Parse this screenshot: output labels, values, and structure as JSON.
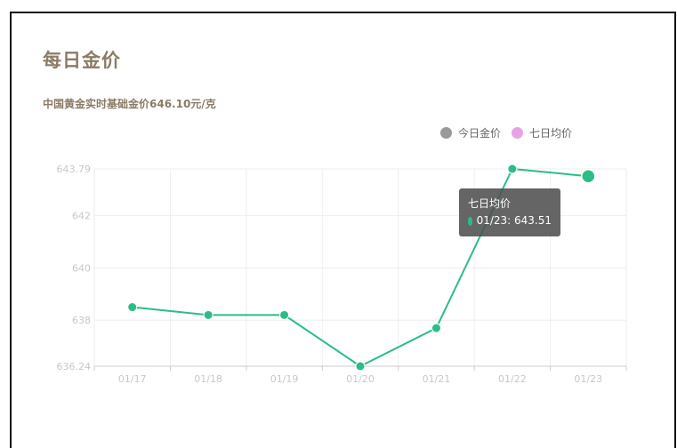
{
  "page": {
    "title": "每日金价",
    "subtitle": "中国黄金实时基础金价646.10元/克"
  },
  "colors": {
    "title": "#8b7b66",
    "line": "#2bbd86",
    "legend_today": "#999999",
    "legend_week": "#e8a2e3",
    "axis_text": "#c8c8c8",
    "grid": "#eeeeee",
    "tooltip_bg": "#505050"
  },
  "chart_data": {
    "type": "line",
    "title": "每日金价",
    "categories": [
      "01/17",
      "01/18",
      "01/19",
      "01/20",
      "01/21",
      "01/22",
      "01/23"
    ],
    "series": [
      {
        "name": "七日均价",
        "values": [
          638.5,
          638.2,
          638.2,
          636.24,
          637.7,
          643.79,
          643.51
        ]
      }
    ],
    "legend": {
      "position": "top-right",
      "items": [
        {
          "name": "今日金价",
          "icon": "grey-circle-icon"
        },
        {
          "name": "七日均价",
          "icon": "pink-circle-icon"
        }
      ]
    },
    "yaxis": {
      "min": 636.24,
      "max": 643.79,
      "ticks": [
        636.24,
        638,
        640,
        642,
        643.79
      ]
    },
    "grid": true,
    "tooltip": {
      "title": "七日均价",
      "text": "01/23: 643.51"
    },
    "highlight_index": 6
  }
}
